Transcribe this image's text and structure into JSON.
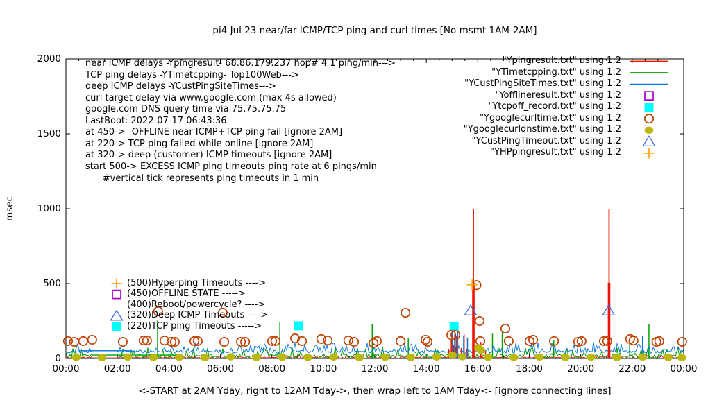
{
  "title": "pi4 Jul 23  near/far ICMP/TCP ping and curl times [No msmt 1AM-2AM]",
  "axes": {
    "ylabel": "msec",
    "xlabel": "<-START at 2AM Yday, right to 12AM Tday->, then wrap left to 1AM Tday<- [ignore connecting lines]",
    "y_ticks": [
      "0",
      "500",
      "1000",
      "1500",
      "2000"
    ],
    "x_ticks": [
      "00:00",
      "02:00",
      "04:00",
      "06:00",
      "08:00",
      "10:00",
      "12:00",
      "14:00",
      "16:00",
      "18:00",
      "20:00",
      "22:00",
      "00:00"
    ]
  },
  "info_block": {
    "lines": [
      "near ICMP delays -Ypingresult- 68.86.179.237 hop# 4 1 ping/min--->",
      "TCP ping delays -YTimetcpping- Top100Web--->",
      "deep ICMP delays -YCustPingSiteTimes--->",
      "curl target delay via www.google.com (max 4s allowed)",
      "google.com DNS query time via 75.75.75.75",
      "LastBoot: 2022-07-17 06:43:36",
      "at 450-> -OFFLINE near ICMP+TCP ping fail [ignore 2AM]",
      "at 220-> TCP ping failed while online [ignore 2AM]",
      "at 320-> deep (customer) ICMP timeouts [ignore 2AM]",
      "start 500-> EXCESS ICMP ping timeouts ping rate at 6 pings/min",
      "      #vertical tick represents ping timeouts in 1 min"
    ]
  },
  "legend": {
    "entries": [
      {
        "label": "\"Ypingresult.txt\" using 1:2",
        "marker": "line",
        "color": "#ee1100"
      },
      {
        "label": "\"YTimetcpping.txt\" using 1:2",
        "marker": "line",
        "color": "#00a000"
      },
      {
        "label": "\"YCustPingSiteTimes.txt\" using 1:2",
        "marker": "line",
        "color": "#0c78d8"
      },
      {
        "label": "\"Yofflineresult.txt\" using 1:2",
        "marker": "open-square",
        "color": "#aa00cc"
      },
      {
        "label": "\"Ytcpoff_record.txt\" using 1:2",
        "marker": "filled-square",
        "color": "#00ffff"
      },
      {
        "label": "\"Ygooglecurltime.txt\" using 1:2",
        "marker": "open-circle",
        "color": "#c04000"
      },
      {
        "label": "\"Ygooglecurldnstime.txt\" using 1:2",
        "marker": "filled-circle",
        "color": "#bcb810"
      },
      {
        "label": "\"YCustPingTimeout.txt\" using 1:2",
        "marker": "open-triangle",
        "color": "#4169e1"
      },
      {
        "label": "\"YHPpingresult.txt\" using 1:2",
        "marker": "plus",
        "color": "#ffa500"
      }
    ]
  },
  "annotations": {
    "items": [
      {
        "text": "(500)Hyperping Timeouts ---->",
        "marker": "plus",
        "color": "#ffa500"
      },
      {
        "text": "(450)OFFLINE STATE ----->",
        "marker": "open-square",
        "color": "#aa00cc"
      },
      {
        "text": "(400)Reboot/powercycle? ---->",
        "marker": "none",
        "color": ""
      },
      {
        "text": "(320)Deep ICMP Timeouts ---->",
        "marker": "open-triangle",
        "color": "#4169e1"
      },
      {
        "text": "(220)TCP ping Timeouts ----->",
        "marker": "filled-square",
        "color": "#00ffff"
      }
    ]
  },
  "chart_data": {
    "type": "line+scatter",
    "title": "pi4 Jul 23  near/far ICMP/TCP ping and curl times [No msmt 1AM-2AM]",
    "xlabel": "<-START at 2AM Yday, right to 12AM Tday->, then wrap left to 1AM Tday<- [ignore connecting lines]",
    "ylabel": "msec",
    "x_unit": "hours 00:00-24:00",
    "ylim": [
      0,
      2000
    ],
    "grid": false,
    "no_measurement_gap_hours": [
      1,
      2
    ],
    "series": [
      {
        "name": "Ypingresult.txt",
        "style": "line",
        "color": "#ee1100",
        "noise": {
          "seed": 11,
          "base": 1.5,
          "amp": 9,
          "spike_prob": 0.03,
          "spike_amp": 25,
          "gap_value": 4
        },
        "spikes_thin": [
          [
            15.83,
            1000
          ],
          [
            21.1,
            1000
          ]
        ],
        "spikes_thick": [
          [
            15.83,
            505
          ],
          [
            21.1,
            505
          ]
        ],
        "spikes_small": [
          [
            14.87,
            60
          ],
          [
            14.97,
            130
          ],
          [
            15.06,
            90
          ],
          [
            15.16,
            150
          ],
          [
            15.36,
            70
          ],
          [
            15.47,
            160
          ],
          [
            15.56,
            60
          ],
          [
            16.12,
            110
          ],
          [
            16.3,
            50
          ]
        ]
      },
      {
        "name": "YTimetcpping.txt",
        "style": "line",
        "color": "#00a000",
        "noise": {
          "seed": 23,
          "base": 4,
          "amp": 24,
          "spike_prob": 0.18,
          "spike_amp": 58,
          "gap_value": 23
        },
        "flat_segment": {
          "from": 1.0,
          "to": 4.5,
          "value": 23
        },
        "spikes": [
          [
            3.56,
            255
          ],
          [
            8.31,
            245
          ],
          [
            11.9,
            230
          ],
          [
            13.3,
            135
          ],
          [
            16.57,
            165
          ],
          [
            16.95,
            175
          ],
          [
            18.95,
            120
          ],
          [
            21.9,
            100
          ],
          [
            22.65,
            230
          ]
        ]
      },
      {
        "name": "YCustPingSiteTimes.txt",
        "style": "line",
        "color": "#0c78d8",
        "noise": {
          "seed": 37,
          "base": 36,
          "amp": 20,
          "spike_prob": 0.35,
          "spike_amp": 55,
          "gap_value": 52
        },
        "flat_segment": {
          "from": 0.49,
          "to": 2.56,
          "value": 52
        },
        "spikes": [
          [
            15.0,
            175
          ],
          [
            15.1,
            160
          ],
          [
            15.22,
            185
          ],
          [
            15.45,
            150
          ],
          [
            15.6,
            140
          ],
          [
            22.4,
            150
          ]
        ]
      },
      {
        "name": "Yofflineresult.txt",
        "style": "open-square",
        "color": "#aa00cc",
        "points": []
      },
      {
        "name": "Ytcpoff_record.txt",
        "style": "filled-square",
        "color": "#00ffff",
        "points": [
          [
            9.03,
            218
          ],
          [
            15.08,
            212
          ]
        ]
      },
      {
        "name": "Ygooglecurltime.txt",
        "style": "open-circle",
        "color": "#c04000",
        "points": [
          [
            0.08,
            116
          ],
          [
            0.32,
            111
          ],
          [
            0.67,
            116
          ],
          [
            1.02,
            125
          ],
          [
            2.21,
            111
          ],
          [
            3.02,
            120
          ],
          [
            3.15,
            120
          ],
          [
            3.58,
            315
          ],
          [
            3.83,
            120
          ],
          [
            4.1,
            111
          ],
          [
            4.23,
            111
          ],
          [
            4.99,
            116
          ],
          [
            5.12,
            116
          ],
          [
            6.09,
            306
          ],
          [
            6.15,
            111
          ],
          [
            6.8,
            111
          ],
          [
            6.96,
            111
          ],
          [
            8.01,
            116
          ],
          [
            8.14,
            116
          ],
          [
            8.9,
            134
          ],
          [
            9.17,
            116
          ],
          [
            9.92,
            130
          ],
          [
            10.17,
            120
          ],
          [
            10.97,
            120
          ],
          [
            11.19,
            111
          ],
          [
            11.95,
            102
          ],
          [
            12.08,
            116
          ],
          [
            13.0,
            116
          ],
          [
            13.19,
            305
          ],
          [
            13.97,
            125
          ],
          [
            14.05,
            111
          ],
          [
            14.97,
            157
          ],
          [
            15.13,
            157
          ],
          [
            15.95,
            490
          ],
          [
            16.07,
            250
          ],
          [
            16.1,
            116
          ],
          [
            17.07,
            199
          ],
          [
            17.2,
            116
          ],
          [
            18.01,
            116
          ],
          [
            18.15,
            125
          ],
          [
            18.96,
            116
          ],
          [
            19.9,
            111
          ],
          [
            20.03,
            116
          ],
          [
            20.9,
            116
          ],
          [
            21.03,
            116
          ],
          [
            21.92,
            130
          ],
          [
            22.05,
            120
          ],
          [
            22.94,
            111
          ],
          [
            23.05,
            116
          ],
          [
            23.94,
            111
          ]
        ]
      },
      {
        "name": "Ygooglecurldnstime.txt",
        "style": "filled-circle",
        "color": "#bcb810",
        "points": [
          [
            0.4,
            8
          ],
          [
            1.4,
            6
          ],
          [
            2.4,
            10
          ],
          [
            3.4,
            7
          ],
          [
            4.4,
            9
          ],
          [
            5.4,
            6
          ],
          [
            6.4,
            11
          ],
          [
            7.4,
            7
          ],
          [
            8.4,
            9
          ],
          [
            9.4,
            8
          ],
          [
            10.4,
            10
          ],
          [
            11.4,
            6
          ],
          [
            12.4,
            9
          ],
          [
            13.4,
            7
          ],
          [
            14.4,
            10
          ],
          [
            15.02,
            22
          ],
          [
            15.4,
            12
          ],
          [
            16.03,
            72
          ],
          [
            16.12,
            55
          ],
          [
            16.4,
            9
          ],
          [
            17.4,
            7
          ],
          [
            18.4,
            10
          ],
          [
            19.4,
            8
          ],
          [
            20.4,
            9
          ],
          [
            21.4,
            7
          ],
          [
            22.4,
            10
          ],
          [
            23.4,
            8
          ],
          [
            23.93,
            6
          ]
        ]
      },
      {
        "name": "YCustPingTimeout.txt",
        "style": "open-triangle",
        "color": "#4169e1",
        "points": [
          [
            15.72,
            318
          ],
          [
            21.08,
            318
          ]
        ]
      },
      {
        "name": "YHPpingresult.txt",
        "style": "plus",
        "color": "#ffa500",
        "points": [
          [
            15.78,
            492
          ]
        ]
      }
    ]
  }
}
